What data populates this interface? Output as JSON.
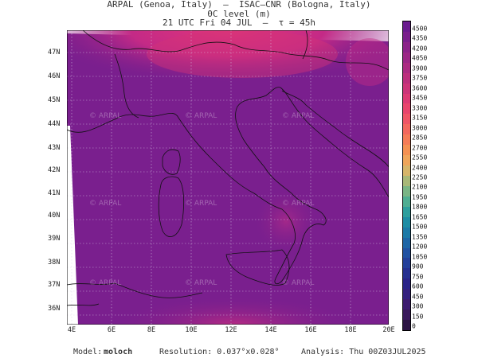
{
  "header": {
    "line1": "ARPAL (Genoa, Italy)  –  ISAC–CNR (Bologna, Italy)",
    "line2": "0C level (m)",
    "line3": "21 UTC Fri 04 JUL  –  τ = 45h"
  },
  "map": {
    "lat_labels": [
      "47N",
      "46N",
      "45N",
      "44N",
      "43N",
      "42N",
      "41N",
      "40N",
      "39N",
      "38N",
      "37N",
      "36N"
    ],
    "lon_labels": [
      "4E",
      "6E",
      "8E",
      "10E",
      "12E",
      "14E",
      "16E",
      "18E",
      "20E"
    ],
    "watermark": "ARPAL"
  },
  "colorbar": {
    "labels": [
      "4500",
      "4350",
      "4200",
      "4050",
      "3900",
      "3750",
      "3600",
      "3450",
      "3300",
      "3150",
      "3000",
      "2850",
      "2700",
      "2550",
      "2400",
      "2250",
      "2100",
      "1950",
      "1800",
      "1650",
      "1500",
      "1350",
      "1200",
      "1050",
      "900",
      "750",
      "600",
      "450",
      "300",
      "150",
      "0"
    ],
    "colors": [
      "#6a1b8e",
      "#7a1f8c",
      "#8b2389",
      "#9b2786",
      "#ab2b82",
      "#bc2f7d",
      "#cc3479",
      "#dc3a74",
      "#e8456d",
      "#ef5566",
      "#f3685e",
      "#f57c57",
      "#f49152",
      "#efa55a",
      "#d6b56a",
      "#a8b878",
      "#7ab585",
      "#4fae92",
      "#2e9f9d",
      "#1e8da4",
      "#1c7aa7",
      "#1e66a6",
      "#2152a2",
      "#24409a",
      "#263090",
      "#2a2388",
      "#34207e",
      "#3d1c70",
      "#3a1a5c",
      "#2c1444"
    ]
  },
  "footer": {
    "model_label": "Model:",
    "model_value": "moloch",
    "resolution": "Resolution: 0.037°x0.028°",
    "analysis": "Analysis: Thu 00Z03JUL2025"
  }
}
